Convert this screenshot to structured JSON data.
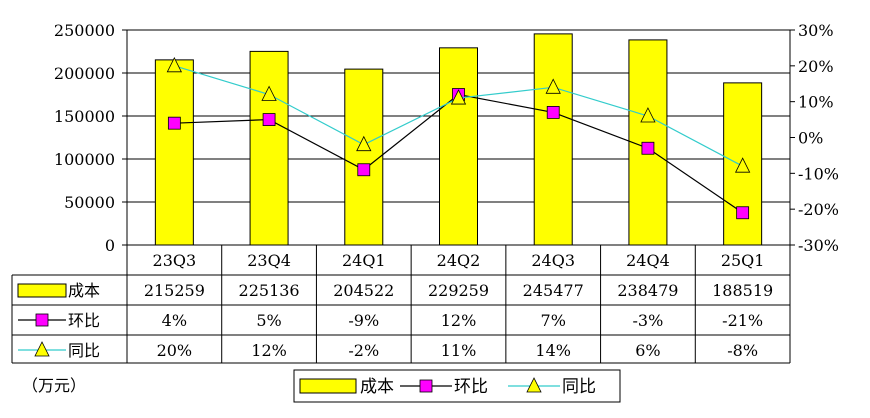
{
  "unit_note": "（万元）",
  "chart_data": {
    "type": "bar",
    "categories": [
      "23Q3",
      "23Q4",
      "24Q1",
      "24Q2",
      "24Q3",
      "24Q4",
      "25Q1"
    ],
    "ylim": [
      0,
      250000
    ],
    "y_ticks": [
      "250000",
      "200000",
      "150000",
      "100000",
      "50000",
      "0"
    ],
    "y2lim": [
      -30,
      30
    ],
    "y2_ticks": [
      "30%",
      "20%",
      "10%",
      "0%",
      "-10%",
      "-20%",
      "-30%"
    ],
    "grid": true,
    "legend_placement": "bottom",
    "series": [
      {
        "name": "成本",
        "type": "bar",
        "axis": "left",
        "color": "#ffff00",
        "values": [
          215259,
          225136,
          204522,
          229259,
          245477,
          238479,
          188519
        ],
        "labels": [
          "215259",
          "225136",
          "204522",
          "229259",
          "245477",
          "238479",
          "188519"
        ]
      },
      {
        "name": "环比",
        "type": "line",
        "axis": "right",
        "color": "#000000",
        "marker": "square",
        "marker_color": "#ff00ff",
        "values": [
          4,
          5,
          -9,
          12,
          7,
          -3,
          -21
        ],
        "labels": [
          "4%",
          "5%",
          "-9%",
          "12%",
          "7%",
          "-3%",
          "-21%"
        ]
      },
      {
        "name": "同比",
        "type": "line",
        "axis": "right",
        "color": "#33cccc",
        "marker": "triangle",
        "marker_color": "#ffff00",
        "values": [
          20,
          12,
          -2,
          11,
          14,
          6,
          -8
        ],
        "labels": [
          "20%",
          "12%",
          "-2%",
          "11%",
          "14%",
          "6%",
          "-8%"
        ]
      }
    ]
  }
}
